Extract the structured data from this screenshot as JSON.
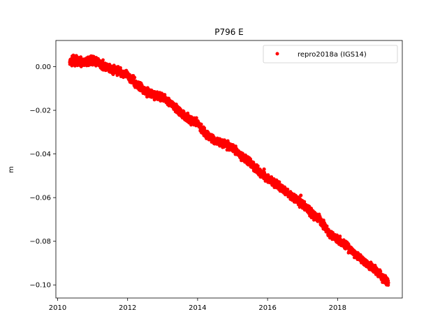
{
  "chart_data": {
    "type": "scatter",
    "title": "P796 E",
    "xlabel": "",
    "ylabel": "m",
    "xlim": [
      2009.95,
      2019.85
    ],
    "ylim": [
      -0.106,
      0.012
    ],
    "xticks": [
      2010,
      2012,
      2014,
      2016,
      2018
    ],
    "xtick_labels": [
      "2010",
      "2012",
      "2014",
      "2016",
      "2018"
    ],
    "yticks": [
      0.0,
      -0.02,
      -0.04,
      -0.06,
      -0.08,
      -0.1
    ],
    "ytick_labels": [
      "0.00",
      "−0.02",
      "−0.04",
      "−0.06",
      "−0.08",
      "−0.10"
    ],
    "grid": false,
    "legend_position": "top-right",
    "series": [
      {
        "name": "repro2018a (IGS14)",
        "color": "#ff0000",
        "marker": "circle",
        "x": [
          2010.35,
          2010.5,
          2010.75,
          2011.0,
          2011.25,
          2011.5,
          2011.75,
          2012.0,
          2012.25,
          2012.5,
          2012.75,
          2013.0,
          2013.25,
          2013.5,
          2013.75,
          2014.0,
          2014.25,
          2014.5,
          2014.75,
          2015.0,
          2015.25,
          2015.5,
          2015.75,
          2016.0,
          2016.25,
          2016.5,
          2016.75,
          2017.0,
          2017.25,
          2017.5,
          2017.75,
          2018.0,
          2018.25,
          2018.5,
          2018.75,
          2019.0,
          2019.25,
          2019.45
        ],
        "y": [
          0.002,
          0.003,
          0.002,
          0.003,
          0.001,
          -0.001,
          -0.002,
          -0.004,
          -0.008,
          -0.011,
          -0.013,
          -0.014,
          -0.017,
          -0.021,
          -0.024,
          -0.026,
          -0.031,
          -0.034,
          -0.035,
          -0.037,
          -0.041,
          -0.044,
          -0.048,
          -0.051,
          -0.054,
          -0.057,
          -0.06,
          -0.063,
          -0.067,
          -0.07,
          -0.076,
          -0.079,
          -0.082,
          -0.086,
          -0.089,
          -0.092,
          -0.096,
          -0.099
        ]
      }
    ],
    "outliers": [
      {
        "x": 2016.95,
        "y": -0.059
      },
      {
        "x": 2015.9,
        "y": -0.047
      }
    ]
  }
}
